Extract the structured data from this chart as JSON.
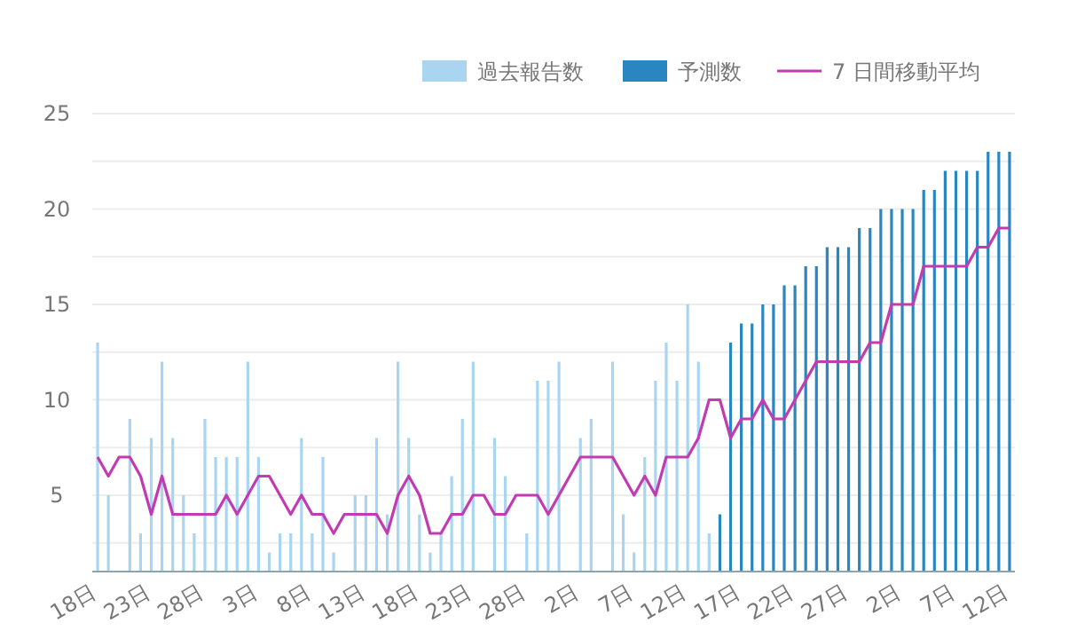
{
  "chart_data": {
    "type": "bar",
    "categories": [
      "18日",
      null,
      null,
      null,
      null,
      "23日",
      null,
      null,
      null,
      null,
      "28日",
      null,
      null,
      null,
      null,
      "3日",
      null,
      null,
      null,
      null,
      "8日",
      null,
      null,
      null,
      null,
      "13日",
      null,
      null,
      null,
      null,
      "18日",
      null,
      null,
      null,
      null,
      "23日",
      null,
      null,
      null,
      null,
      "28日",
      null,
      null,
      null,
      null,
      "2日",
      null,
      null,
      null,
      null,
      "7日",
      null,
      null,
      null,
      null,
      "12日",
      null,
      null,
      null,
      null,
      "17日",
      null,
      null,
      null,
      null,
      "22日",
      null,
      null,
      null,
      null,
      "27日",
      null,
      null,
      null,
      null,
      "2日",
      null,
      null,
      null,
      null,
      "7日",
      null,
      null,
      null,
      null,
      "12日"
    ],
    "series": [
      {
        "name": "過去報告数",
        "color": "#a9d5f0",
        "values": [
          13,
          5,
          1,
          9,
          3,
          8,
          12,
          8,
          5,
          3,
          9,
          7,
          7,
          7,
          12,
          7,
          2,
          3,
          3,
          8,
          3,
          7,
          2,
          1,
          5,
          5,
          8,
          4,
          12,
          8,
          4,
          2,
          3,
          6,
          9,
          12,
          1,
          8,
          6,
          1,
          3,
          11,
          11,
          12,
          1,
          8,
          9,
          1,
          12,
          4,
          2,
          7,
          11,
          13,
          11,
          15,
          12,
          3,
          null,
          null,
          null,
          null,
          null,
          null,
          null,
          null,
          null,
          null,
          null,
          null,
          null,
          null,
          null,
          null,
          null,
          null,
          null,
          null,
          null,
          null,
          null,
          null,
          null,
          null,
          null,
          null
        ]
      },
      {
        "name": "予測数",
        "color": "#2a86c0",
        "values": [
          null,
          null,
          null,
          null,
          null,
          null,
          null,
          null,
          null,
          null,
          null,
          null,
          null,
          null,
          null,
          null,
          null,
          null,
          null,
          null,
          null,
          null,
          null,
          null,
          null,
          null,
          null,
          null,
          null,
          null,
          null,
          null,
          null,
          null,
          null,
          null,
          null,
          null,
          null,
          null,
          null,
          null,
          null,
          null,
          null,
          null,
          null,
          null,
          null,
          null,
          null,
          null,
          null,
          null,
          null,
          null,
          null,
          null,
          4,
          13,
          14,
          14,
          15,
          15,
          16,
          16,
          17,
          17,
          18,
          18,
          18,
          19,
          19,
          20,
          20,
          20,
          20,
          21,
          21,
          22,
          22,
          22,
          22,
          23,
          23,
          23
        ]
      },
      {
        "name": "7 日間移動平均",
        "color": "#c23bb0",
        "type": "line",
        "values": [
          7,
          6,
          7,
          7,
          6,
          4,
          6,
          4,
          4,
          4,
          4,
          4,
          5,
          4,
          5,
          6,
          6,
          5,
          4,
          5,
          4,
          4,
          3,
          4,
          4,
          4,
          4,
          3,
          5,
          6,
          5,
          3,
          3,
          4,
          4,
          5,
          5,
          4,
          4,
          5,
          5,
          5,
          4,
          5,
          6,
          7,
          7,
          7,
          7,
          6,
          5,
          6,
          5,
          7,
          7,
          7,
          8,
          10,
          10,
          8,
          9,
          9,
          10,
          9,
          9,
          10,
          11,
          12,
          12,
          12,
          12,
          12,
          13,
          13,
          15,
          15,
          15,
          17,
          17,
          17,
          17,
          17,
          18,
          18,
          19,
          19
        ]
      }
    ],
    "ylim": [
      1,
      25
    ],
    "yticks": [
      {
        "value": 2.5,
        "label": null
      },
      5,
      {
        "value": 7.5,
        "label": null
      },
      10,
      {
        "value": 12.5,
        "label": null
      },
      15,
      {
        "value": 17.5,
        "label": null
      },
      20,
      {
        "value": 22.5,
        "label": null
      },
      25
    ],
    "grid": "y",
    "legend": "top right"
  }
}
